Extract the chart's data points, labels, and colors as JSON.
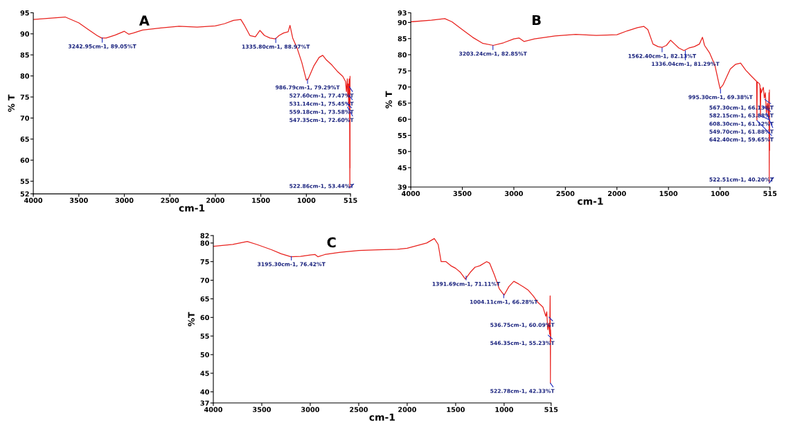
{
  "chart_data": [
    {
      "type": "line",
      "title": "A",
      "xlabel": "cm-1",
      "ylabel": "% T",
      "xlim": [
        4000,
        515
      ],
      "xticks": [
        4000,
        3500,
        3000,
        2500,
        2000,
        1500,
        1000,
        515
      ],
      "ylim": [
        52,
        95
      ],
      "yticks": [
        95,
        90,
        85,
        80,
        75,
        70,
        65,
        60,
        55,
        52
      ],
      "grid": false,
      "x": [
        4000,
        3650,
        3500,
        3400,
        3300,
        3250,
        3200,
        3100,
        3000,
        2950,
        2900,
        2800,
        2600,
        2400,
        2200,
        2000,
        1900,
        1800,
        1720,
        1680,
        1620,
        1560,
        1510,
        1460,
        1400,
        1340,
        1300,
        1250,
        1200,
        1180,
        1150,
        1100,
        1050,
        1000,
        980,
        920,
        860,
        820,
        780,
        720,
        660,
        600,
        570,
        560,
        550,
        545,
        540,
        535,
        530,
        527,
        524,
        522,
        520,
        518,
        516,
        515
      ],
      "series": [
        {
          "color": "#e8201c",
          "values": [
            93.4,
            94.0,
            92.6,
            91.1,
            89.6,
            89.0,
            89.0,
            89.7,
            90.6,
            89.9,
            90.2,
            90.9,
            91.4,
            91.8,
            91.6,
            91.9,
            92.4,
            93.2,
            93.4,
            92.0,
            89.6,
            89.3,
            90.8,
            89.6,
            89.0,
            88.8,
            89.6,
            90.2,
            90.5,
            92.0,
            89.0,
            86.5,
            83.2,
            79.0,
            79.3,
            82.3,
            84.4,
            84.9,
            83.8,
            82.6,
            81.1,
            79.9,
            78.7,
            76.3,
            79.3,
            75.1,
            78.1,
            72.7,
            79.3,
            73.9,
            69.0,
            53.4,
            79.9,
            58.2,
            75.1,
            74.0
          ]
        }
      ],
      "annotations": [
        {
          "text": "3242.95cm-1, 89.05%T",
          "x": 3243,
          "y": 89.05
        },
        {
          "text": "1335.80cm-1, 88.97%T",
          "x": 1336,
          "y": 88.97
        },
        {
          "text": "986.79cm-1, 79.29%T",
          "x": 987,
          "y": 79.29
        },
        {
          "text": "527.60cm-1, 77.47%T",
          "x": 528,
          "y": 77.47
        },
        {
          "text": "531.14cm-1, 75.45%T",
          "x": 531,
          "y": 75.45
        },
        {
          "text": "559.18cm-1, 73.58%T",
          "x": 559,
          "y": 73.58
        },
        {
          "text": "547.35cm-1, 72.60%T",
          "x": 547,
          "y": 72.6
        },
        {
          "text": "522.86cm-1, 53.44%T",
          "x": 523,
          "y": 53.44
        }
      ]
    },
    {
      "type": "line",
      "title": "B",
      "xlabel": "cm-1",
      "ylabel": "% T",
      "xlim": [
        4000,
        515
      ],
      "xticks": [
        4000,
        3500,
        3000,
        2500,
        2000,
        1500,
        1000,
        515
      ],
      "ylim": [
        39,
        93
      ],
      "yticks": [
        93,
        90,
        85,
        80,
        75,
        70,
        65,
        60,
        55,
        50,
        45,
        39
      ],
      "grid": false,
      "x": [
        4000,
        3800,
        3670,
        3600,
        3500,
        3400,
        3300,
        3200,
        3100,
        3000,
        2950,
        2900,
        2800,
        2600,
        2400,
        2200,
        2000,
        1900,
        1800,
        1740,
        1700,
        1650,
        1600,
        1560,
        1520,
        1480,
        1440,
        1400,
        1350,
        1300,
        1250,
        1200,
        1170,
        1150,
        1100,
        1050,
        1000,
        970,
        900,
        850,
        800,
        750,
        700,
        650,
        645,
        642,
        639,
        620,
        612,
        608,
        604,
        600,
        580,
        570,
        560,
        550,
        540,
        530,
        525,
        522,
        520,
        518,
        515
      ],
      "series": [
        {
          "color": "#e8201c",
          "values": [
            90.2,
            90.7,
            91.2,
            90.2,
            87.8,
            85.4,
            83.5,
            82.9,
            83.7,
            84.9,
            85.2,
            84.1,
            84.9,
            85.8,
            86.3,
            86.0,
            86.2,
            87.4,
            88.4,
            88.8,
            87.8,
            83.3,
            82.5,
            82.3,
            82.9,
            84.5,
            83.3,
            82.1,
            81.3,
            82.1,
            82.5,
            83.3,
            85.4,
            82.9,
            80.5,
            76.8,
            69.5,
            70.7,
            75.6,
            77.0,
            77.4,
            75.2,
            73.5,
            71.9,
            71.8,
            59.7,
            71.6,
            71.1,
            70.5,
            61.1,
            69.5,
            68.2,
            69.9,
            66.6,
            68.2,
            61.9,
            65.0,
            60.9,
            68.2,
            40.5,
            69.1,
            50.3,
            60.1
          ]
        }
      ],
      "annotations": [
        {
          "text": "3203.24cm-1, 82.85%T",
          "x": 3203,
          "y": 82.85
        },
        {
          "text": "1562.40cm-1, 82.13%T",
          "x": 1562,
          "y": 82.13
        },
        {
          "text": "1336.04cm-1, 81.29%T",
          "x": 1336,
          "y": 81.29
        },
        {
          "text": "995.30cm-1, 69.38%T",
          "x": 995,
          "y": 69.38
        },
        {
          "text": "567.30cm-1, 66.13%T",
          "x": 567,
          "y": 66.13
        },
        {
          "text": "582.15cm-1, 63.88%T",
          "x": 582,
          "y": 63.88
        },
        {
          "text": "608.30cm-1, 61.12%T",
          "x": 608,
          "y": 61.12
        },
        {
          "text": "549.70cm-1, 61.88%T",
          "x": 550,
          "y": 61.88
        },
        {
          "text": "642.40cm-1, 59.65%T",
          "x": 642,
          "y": 59.65
        },
        {
          "text": "522.51cm-1, 40.20%T",
          "x": 523,
          "y": 40.2
        }
      ]
    },
    {
      "type": "line",
      "title": "C",
      "xlabel": "cm-1",
      "ylabel": "%T",
      "xlim": [
        4000,
        515
      ],
      "xticks": [
        4000,
        3500,
        3000,
        2500,
        2000,
        1500,
        1000,
        515
      ],
      "ylim": [
        37,
        82
      ],
      "yticks": [
        82,
        80,
        75,
        70,
        65,
        60,
        55,
        50,
        45,
        40,
        37
      ],
      "grid": false,
      "x": [
        4000,
        3800,
        3650,
        3550,
        3400,
        3300,
        3200,
        3100,
        3000,
        2950,
        2920,
        2850,
        2700,
        2500,
        2300,
        2100,
        2000,
        1900,
        1800,
        1720,
        1680,
        1650,
        1600,
        1550,
        1500,
        1450,
        1400,
        1350,
        1300,
        1250,
        1180,
        1150,
        1100,
        1050,
        1000,
        950,
        900,
        850,
        800,
        750,
        700,
        650,
        600,
        570,
        560,
        550,
        540,
        530,
        525,
        522,
        520,
        515
      ],
      "series": [
        {
          "color": "#e8201c",
          "values": [
            79.1,
            79.6,
            80.4,
            79.6,
            78.2,
            77.1,
            76.3,
            76.4,
            76.8,
            76.9,
            76.3,
            76.9,
            77.5,
            78.0,
            78.2,
            78.3,
            78.6,
            79.3,
            80.0,
            81.2,
            79.6,
            75.0,
            75.0,
            73.9,
            73.2,
            72.1,
            70.3,
            72.1,
            73.5,
            73.9,
            75.0,
            74.6,
            71.4,
            67.7,
            66.0,
            68.3,
            69.7,
            69.0,
            68.2,
            67.3,
            65.8,
            64.0,
            62.8,
            60.3,
            61.5,
            56.7,
            58.5,
            55.5,
            65.8,
            42.3,
            56.7,
            53.7
          ]
        }
      ],
      "annotations": [
        {
          "text": "3195.30cm-1, 76.42%T",
          "x": 3195,
          "y": 76.42
        },
        {
          "text": "1391.69cm-1, 71.11%T",
          "x": 1392,
          "y": 71.11
        },
        {
          "text": "1004.11cm-1, 66.28%T",
          "x": 1004,
          "y": 66.28
        },
        {
          "text": "536.75cm-1, 60.09%T",
          "x": 537,
          "y": 60.09
        },
        {
          "text": "546.35cm-1, 55.23%T",
          "x": 546,
          "y": 55.23
        },
        {
          "text": "522.78cm-1, 42.33%T",
          "x": 523,
          "y": 42.33
        }
      ]
    }
  ]
}
